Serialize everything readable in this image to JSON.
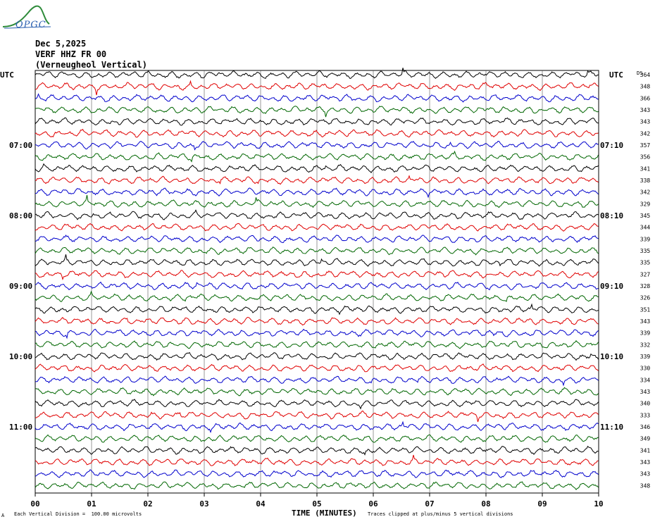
{
  "header": {
    "date": "Dec 5,2025",
    "station": "VERF HHZ FR 00",
    "location": "(Verneugheol Vertical)",
    "logo_text": "OPGC"
  },
  "axis": {
    "left_title": "UTC",
    "right_title": "UTC",
    "ds_label": "DS",
    "xlabel": "TIME (MINUTES)",
    "footer_left": "Each Vertical Division =  100.00 microvolts",
    "footer_right": "Traces clipped at plus/minus 5 vertical divisions",
    "footer_mark": "A"
  },
  "chart_data": {
    "type": "line",
    "title": "",
    "xlabel": "TIME (MINUTES)",
    "xlim": [
      0,
      10
    ],
    "x_ticks": [
      "00",
      "01",
      "02",
      "03",
      "04",
      "05",
      "06",
      "07",
      "08",
      "09",
      "10"
    ],
    "trace_count": 36,
    "trace_colors": [
      "#000000",
      "#e00000",
      "#0000cc",
      "#006600"
    ],
    "left_time_labels": [
      {
        "row": 6,
        "label": "07:00"
      },
      {
        "row": 12,
        "label": "08:00"
      },
      {
        "row": 18,
        "label": "09:00"
      },
      {
        "row": 24,
        "label": "10:00"
      },
      {
        "row": 30,
        "label": "11:00"
      }
    ],
    "right_time_labels": [
      {
        "row": 6,
        "label": "07:10"
      },
      {
        "row": 12,
        "label": "08:10"
      },
      {
        "row": 18,
        "label": "09:10"
      },
      {
        "row": 24,
        "label": "10:10"
      },
      {
        "row": 30,
        "label": "11:10"
      }
    ],
    "ds_values": [
      "364",
      "348",
      "366",
      "343",
      "343",
      "342",
      "357",
      "356",
      "341",
      "338",
      "342",
      "329",
      "345",
      "344",
      "339",
      "335",
      "335",
      "327",
      "328",
      "326",
      "351",
      "343",
      "339",
      "332",
      "339",
      "330",
      "334",
      "343",
      "340",
      "333",
      "346",
      "349",
      "341",
      "343",
      "343",
      "348"
    ]
  }
}
